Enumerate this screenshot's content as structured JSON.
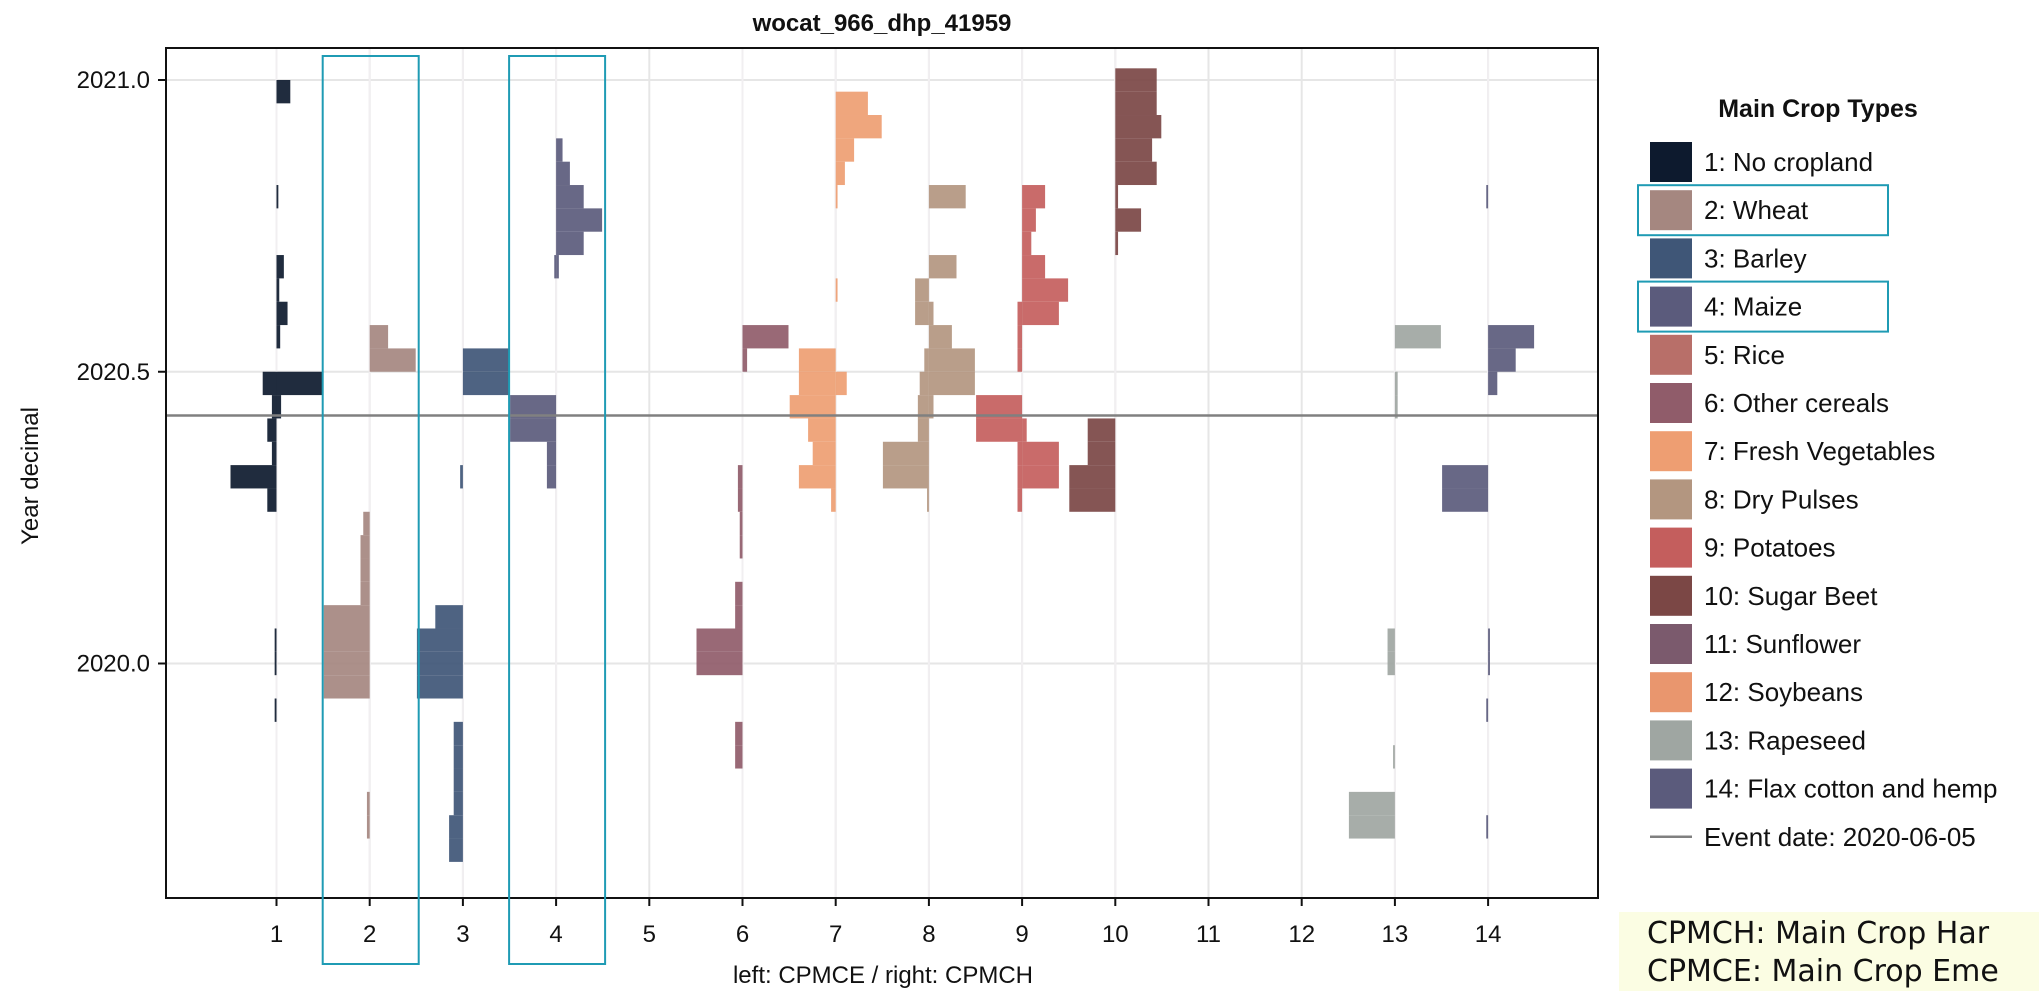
{
  "chart_data": {
    "type": "bar",
    "orientation": "horizontal-histogram",
    "title": "wocat_966_dhp_41959",
    "xlabel": "left: CPMCE / right: CPMCH",
    "ylabel": "Year decimal",
    "x_ticks": [
      "1",
      "2",
      "3",
      "4",
      "5",
      "6",
      "7",
      "8",
      "9",
      "10",
      "11",
      "12",
      "13",
      "14"
    ],
    "y_ticks": [
      "2020.0",
      "2020.5",
      "2021.0"
    ],
    "ylim": [
      2019.6,
      2021.05
    ],
    "bin_width": 0.04,
    "grid": true,
    "legend_placement": "right",
    "legend_title": "Main Crop Types",
    "event": {
      "label": "Event date: 2020-06-05",
      "value": 2020.425,
      "color": "#808080"
    },
    "highlights": [
      2,
      4
    ],
    "series": [
      {
        "name": "1: No cropland",
        "category": 1,
        "color": "#0d1a2e",
        "left": [
          [
            2020.46,
            0.15
          ],
          [
            2020.42,
            0.05
          ],
          [
            2020.38,
            0.1
          ],
          [
            2020.34,
            0.05
          ],
          [
            2020.3,
            0.5
          ],
          [
            2020.26,
            0.1
          ],
          [
            2020.02,
            0.02
          ],
          [
            2019.98,
            0.02
          ],
          [
            2019.9,
            0.02
          ]
        ],
        "right": [
          [
            2020.96,
            0.15
          ],
          [
            2020.66,
            0.08
          ],
          [
            2020.62,
            0.03
          ],
          [
            2020.58,
            0.12
          ],
          [
            2020.54,
            0.04
          ],
          [
            2020.46,
            0.5
          ],
          [
            2020.42,
            0.05
          ],
          [
            2020.78,
            0.02
          ]
        ]
      },
      {
        "name": "2: Wheat",
        "category": 2,
        "color": "#a58780",
        "left": [
          [
            2020.06,
            0.5
          ],
          [
            2020.02,
            0.5
          ],
          [
            2019.98,
            0.5
          ],
          [
            2019.94,
            0.5
          ],
          [
            2020.18,
            0.1
          ],
          [
            2020.14,
            0.1
          ],
          [
            2020.1,
            0.1
          ],
          [
            2020.22,
            0.07
          ],
          [
            2019.74,
            0.03
          ],
          [
            2019.7,
            0.03
          ]
        ],
        "right": [
          [
            2020.54,
            0.2
          ],
          [
            2020.5,
            0.5
          ]
        ]
      },
      {
        "name": "3: Barley",
        "category": 3,
        "color": "#3f5677",
        "left": [
          [
            2020.02,
            0.5
          ],
          [
            2019.98,
            0.5
          ],
          [
            2019.94,
            0.5
          ],
          [
            2020.06,
            0.3
          ],
          [
            2019.86,
            0.1
          ],
          [
            2019.82,
            0.1
          ],
          [
            2019.78,
            0.1
          ],
          [
            2019.74,
            0.1
          ],
          [
            2019.7,
            0.15
          ],
          [
            2019.66,
            0.15
          ],
          [
            2020.3,
            0.03
          ]
        ],
        "right": [
          [
            2020.5,
            0.5
          ],
          [
            2020.46,
            0.5
          ]
        ]
      },
      {
        "name": "4: Maize",
        "category": 4,
        "color": "#5b5b7c",
        "left": [
          [
            2020.42,
            0.5
          ],
          [
            2020.38,
            0.5
          ],
          [
            2020.34,
            0.1
          ],
          [
            2020.3,
            0.1
          ],
          [
            2020.66,
            0.02
          ]
        ],
        "right": [
          [
            2020.86,
            0.07
          ],
          [
            2020.82,
            0.15
          ],
          [
            2020.78,
            0.3
          ],
          [
            2020.74,
            0.5
          ],
          [
            2020.7,
            0.3
          ],
          [
            2020.66,
            0.03
          ]
        ]
      },
      {
        "name": "6: Other cereals",
        "category": 6,
        "color": "#905c6a",
        "left": [
          [
            2020.02,
            0.5
          ],
          [
            2019.98,
            0.5
          ],
          [
            2020.1,
            0.08
          ],
          [
            2020.06,
            0.08
          ],
          [
            2019.86,
            0.08
          ],
          [
            2019.82,
            0.08
          ],
          [
            2020.3,
            0.05
          ],
          [
            2020.26,
            0.05
          ],
          [
            2020.22,
            0.03
          ],
          [
            2020.18,
            0.03
          ]
        ],
        "right": [
          [
            2020.54,
            0.5
          ],
          [
            2020.5,
            0.05
          ]
        ]
      },
      {
        "name": "7: Fresh Vegetables",
        "category": 7,
        "color": "#ee9e72",
        "left": [
          [
            2020.5,
            0.4
          ],
          [
            2020.46,
            0.4
          ],
          [
            2020.42,
            0.5
          ],
          [
            2020.38,
            0.3
          ],
          [
            2020.34,
            0.25
          ],
          [
            2020.3,
            0.4
          ],
          [
            2020.26,
            0.05
          ]
        ],
        "right": [
          [
            2020.94,
            0.35
          ],
          [
            2020.9,
            0.5
          ],
          [
            2020.86,
            0.2
          ],
          [
            2020.82,
            0.1
          ],
          [
            2020.78,
            0.02
          ],
          [
            2020.62,
            0.02
          ],
          [
            2020.46,
            0.12
          ]
        ]
      },
      {
        "name": "8: Dry Pulses",
        "category": 8,
        "color": "#b39680",
        "left": [
          [
            2020.62,
            0.15
          ],
          [
            2020.58,
            0.15
          ],
          [
            2020.5,
            0.05
          ],
          [
            2020.46,
            0.1
          ],
          [
            2020.42,
            0.12
          ],
          [
            2020.38,
            0.12
          ],
          [
            2020.34,
            0.5
          ],
          [
            2020.3,
            0.5
          ],
          [
            2020.26,
            0.02
          ]
        ],
        "right": [
          [
            2020.78,
            0.4
          ],
          [
            2020.66,
            0.3
          ],
          [
            2020.58,
            0.05
          ],
          [
            2020.54,
            0.25
          ],
          [
            2020.5,
            0.5
          ],
          [
            2020.46,
            0.5
          ],
          [
            2020.42,
            0.05
          ]
        ]
      },
      {
        "name": "9: Potatoes",
        "category": 9,
        "color": "#c45e5d",
        "left": [
          [
            2020.42,
            0.5
          ],
          [
            2020.38,
            0.5
          ],
          [
            2020.58,
            0.05
          ],
          [
            2020.54,
            0.05
          ],
          [
            2020.5,
            0.05
          ],
          [
            2020.34,
            0.05
          ],
          [
            2020.3,
            0.05
          ],
          [
            2020.26,
            0.05
          ]
        ],
        "right": [
          [
            2020.78,
            0.25
          ],
          [
            2020.74,
            0.15
          ],
          [
            2020.7,
            0.1
          ],
          [
            2020.66,
            0.25
          ],
          [
            2020.62,
            0.5
          ],
          [
            2020.58,
            0.4
          ],
          [
            2020.38,
            0.05
          ],
          [
            2020.34,
            0.4
          ],
          [
            2020.3,
            0.4
          ]
        ]
      },
      {
        "name": "10: Sugar Beet",
        "category": 10,
        "color": "#7b4745",
        "left": [
          [
            2020.38,
            0.3
          ],
          [
            2020.34,
            0.3
          ],
          [
            2020.3,
            0.5
          ],
          [
            2020.26,
            0.5
          ]
        ],
        "right": [
          [
            2020.98,
            0.45
          ],
          [
            2020.94,
            0.45
          ],
          [
            2020.9,
            0.5
          ],
          [
            2020.86,
            0.4
          ],
          [
            2020.82,
            0.45
          ],
          [
            2020.78,
            0.03
          ],
          [
            2020.74,
            0.28
          ],
          [
            2020.7,
            0.03
          ]
        ]
      },
      {
        "name": "13: Rapeseed",
        "category": 13,
        "color": "#9fa6a2",
        "left": [
          [
            2020.02,
            0.08
          ],
          [
            2019.98,
            0.08
          ],
          [
            2019.74,
            0.5
          ],
          [
            2019.7,
            0.5
          ],
          [
            2019.82,
            0.02
          ]
        ],
        "right": [
          [
            2020.54,
            0.5
          ],
          [
            2020.46,
            0.03
          ],
          [
            2020.42,
            0.03
          ]
        ]
      },
      {
        "name": "14: Flax cotton and hemp",
        "category": 14,
        "color": "#5b5b7c",
        "left": [
          [
            2020.3,
            0.5
          ],
          [
            2020.26,
            0.5
          ],
          [
            2020.78,
            0.02
          ],
          [
            2019.9,
            0.02
          ],
          [
            2019.7,
            0.02
          ]
        ],
        "right": [
          [
            2020.54,
            0.5
          ],
          [
            2020.5,
            0.3
          ],
          [
            2020.46,
            0.1
          ],
          [
            2020.02,
            0.02
          ],
          [
            2019.98,
            0.02
          ]
        ]
      }
    ]
  },
  "legend": {
    "title": "Main Crop Types",
    "items": [
      {
        "label": "1: No cropland",
        "color": "#0d1a2e"
      },
      {
        "label": "2: Wheat",
        "color": "#a58780"
      },
      {
        "label": "3: Barley",
        "color": "#3f5677"
      },
      {
        "label": "4: Maize",
        "color": "#5b5b7c"
      },
      {
        "label": "5: Rice",
        "color": "#b86f69"
      },
      {
        "label": "6: Other cereals",
        "color": "#905c6a"
      },
      {
        "label": "7: Fresh Vegetables",
        "color": "#ee9e72"
      },
      {
        "label": "8: Dry Pulses",
        "color": "#b39680"
      },
      {
        "label": "9: Potatoes",
        "color": "#c45e5d"
      },
      {
        "label": "10: Sugar Beet",
        "color": "#7b4745"
      },
      {
        "label": "11: Sunflower",
        "color": "#7b5a6d"
      },
      {
        "label": "12: Soybeans",
        "color": "#e9966e"
      },
      {
        "label": "13: Rapeseed",
        "color": "#9fa6a2"
      },
      {
        "label": "14: Flax cotton and hemp",
        "color": "#5b5b7c"
      }
    ],
    "event_label": "Event date: 2020-06-05"
  },
  "note": {
    "line1": "CPMCH: Main Crop Har",
    "line2": "CPMCE: Main Crop Eme"
  },
  "colors": {
    "highlight": "#1f9bb4",
    "grid": "#e6e6e6",
    "event": "#808080"
  }
}
